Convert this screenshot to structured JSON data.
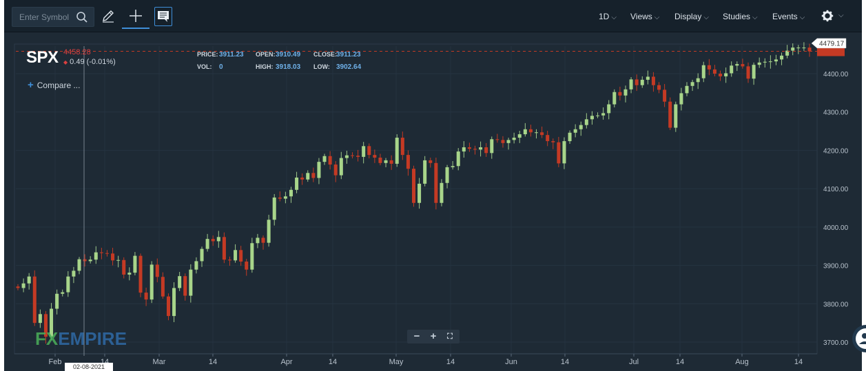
{
  "toolbar": {
    "search_placeholder": "Enter Symbol",
    "interval": "1D",
    "menus": [
      "Views",
      "Display",
      "Studies",
      "Events"
    ],
    "icons": [
      "search-icon",
      "pencil-icon",
      "crosshair-icon",
      "comment-icon",
      "gear-icon"
    ]
  },
  "symbol": {
    "ticker": "SPX",
    "last": "4458.28",
    "change": "0.49 (-0.01%)"
  },
  "ohlc": {
    "price_label": "PRICE:",
    "price": "3911.23",
    "open_label": "OPEN:",
    "open": "3910.49",
    "close_label": "CLOSE:",
    "close": "3911.23",
    "vol_label": "VOL:",
    "vol": "0",
    "high_label": "HIGH:",
    "high": "3918.03",
    "low_label": "LOW:",
    "low": "3902.64"
  },
  "compare_label": "Compare ...",
  "crosshair_date": "02-08-2021",
  "logo": {
    "fx": "FX",
    "empire": "EMPIRE"
  },
  "colors": {
    "up": "#a8d58a",
    "down": "#c43a24",
    "background": "#1e2a35",
    "accent": "#3f8fd8",
    "last_price": "#d94040"
  },
  "chart_data": {
    "type": "candlestick",
    "title": "SPX",
    "x_labels": [
      "Feb",
      "14",
      "Mar",
      "14",
      "Apr",
      "14",
      "May",
      "14",
      "Jun",
      "14",
      "Jul",
      "14",
      "Aug",
      "14"
    ],
    "y_ticks": [
      "4400.00",
      "4300.00",
      "4200.00",
      "4100.00",
      "4000.00",
      "3900.00",
      "3800.00",
      "3700.00"
    ],
    "ylim": [
      3680,
      4500
    ],
    "x_range": [
      "2021-01-26",
      "2021-08-18"
    ],
    "price_tag": "4479.17",
    "last_price_line": 4458.28,
    "closes": [
      3841,
      3853,
      3871,
      3750,
      3773,
      3714,
      3787,
      3826,
      3830,
      3871,
      3886,
      3916,
      3911,
      3915,
      3934,
      3932,
      3931,
      3913,
      3914,
      3876,
      3881,
      3925,
      3829,
      3811,
      3902,
      3870,
      3819,
      3768,
      3841,
      3872,
      3821,
      3889,
      3911,
      3943,
      3969,
      3963,
      3974,
      3915,
      3913,
      3940,
      3910,
      3889,
      3958,
      3972,
      3959,
      4019,
      4077,
      4074,
      4080,
      4097,
      4129,
      4124,
      4141,
      4128,
      4170,
      4185,
      4163,
      4135,
      4180,
      4187,
      4186,
      4183,
      4211,
      4188,
      4181,
      4167,
      4174,
      4165,
      4233,
      4188,
      4152,
      4063,
      4113,
      4174,
      4167,
      4063,
      4115,
      4156,
      4159,
      4197,
      4208,
      4204,
      4202,
      4208,
      4193,
      4229,
      4227,
      4219,
      4227,
      4233,
      4242,
      4255,
      4247,
      4247,
      4240,
      4224,
      4221,
      4166,
      4224,
      4246,
      4255,
      4266,
      4281,
      4290,
      4291,
      4297,
      4320,
      4352,
      4343,
      4359,
      4385,
      4370,
      4384,
      4392,
      4370,
      4358,
      4327,
      4259,
      4320,
      4349,
      4368,
      4378,
      4388,
      4422,
      4411,
      4400,
      4393,
      4401,
      4421,
      4425,
      4419,
      4387,
      4423,
      4429,
      4431,
      4432,
      4437,
      4447,
      4460,
      4468,
      4468,
      4468,
      4458
    ]
  }
}
